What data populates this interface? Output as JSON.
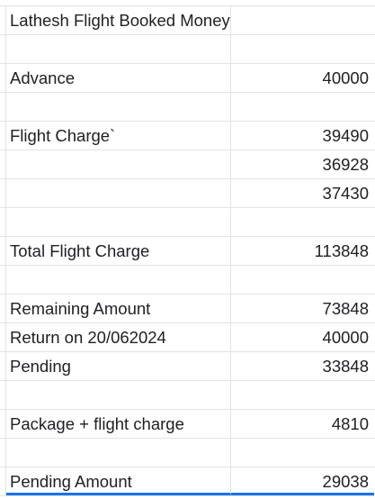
{
  "sheet": {
    "rows": [
      {
        "label": "Lathesh Flight Booked Money",
        "value": ""
      },
      {
        "label": "",
        "value": ""
      },
      {
        "label": "Advance",
        "value": "40000"
      },
      {
        "label": "",
        "value": ""
      },
      {
        "label": "Flight Charge`",
        "value": "39490"
      },
      {
        "label": "",
        "value": "36928"
      },
      {
        "label": "",
        "value": "37430"
      },
      {
        "label": "",
        "value": ""
      },
      {
        "label": "Total Flight Charge",
        "value": "113848"
      },
      {
        "label": "",
        "value": ""
      },
      {
        "label": "Remaining Amount",
        "value": "73848"
      },
      {
        "label": "Return on 20/062024",
        "value": "40000"
      },
      {
        "label": "Pending",
        "value": "33848"
      },
      {
        "label": "",
        "value": ""
      },
      {
        "label": "Package + flight charge",
        "value": "4810"
      },
      {
        "label": "",
        "value": ""
      },
      {
        "label": "Pending Amount",
        "value": "29038"
      }
    ]
  },
  "colors": {
    "gridline": "#e2e3e3",
    "text": "#202124",
    "selection": "#1a73e8"
  }
}
